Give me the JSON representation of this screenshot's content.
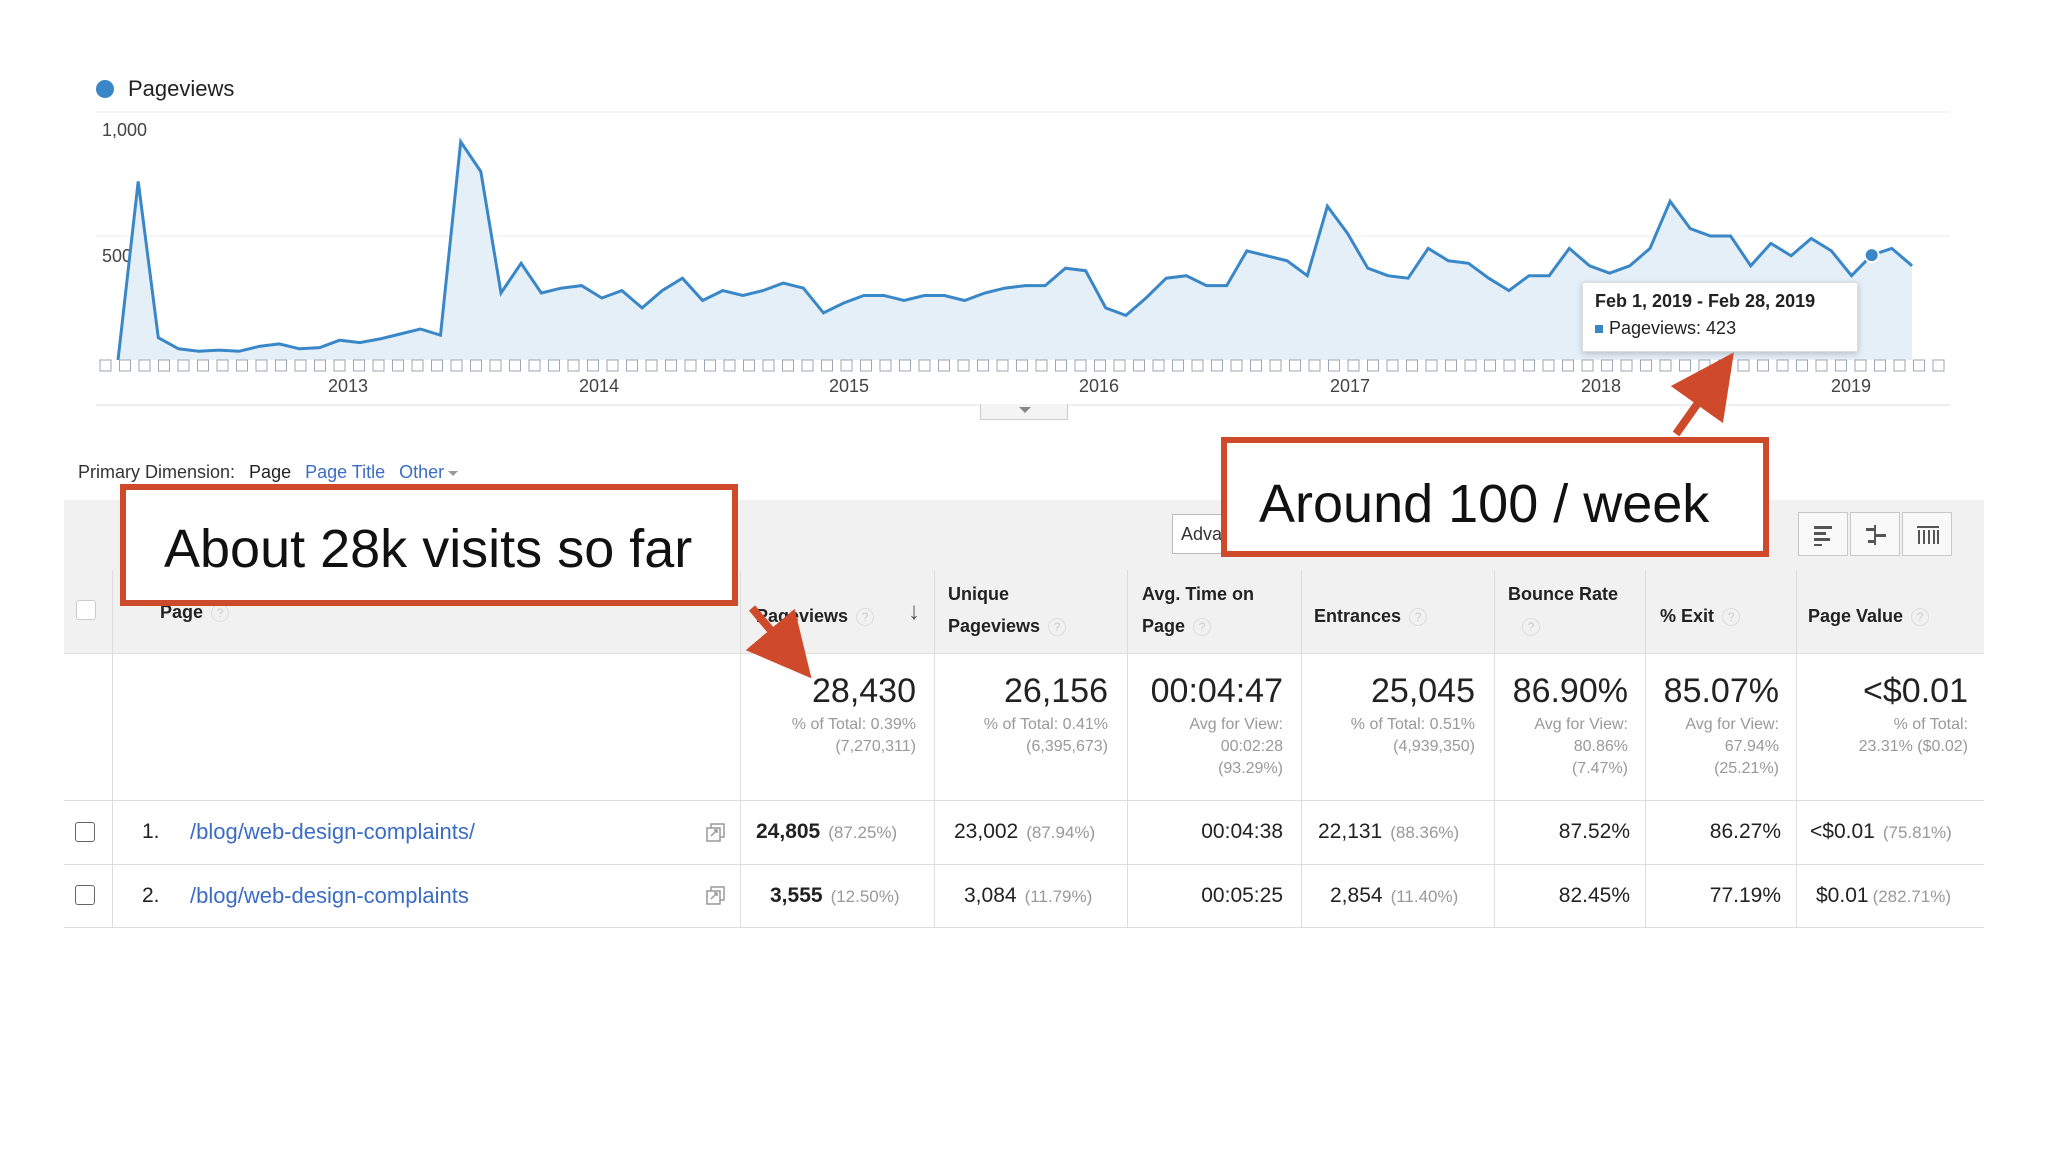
{
  "chart": {
    "legend_label": "Pageviews",
    "series_color": "#3a87c8",
    "y_ticks": [
      "1,000",
      "500"
    ],
    "x_ticks": [
      "2013",
      "2014",
      "2015",
      "2016",
      "2017",
      "2018",
      "2019"
    ],
    "tooltip": {
      "date_range": "Feb 1, 2019 - Feb 28, 2019",
      "label": "Pageviews: 423"
    }
  },
  "chart_data": {
    "type": "area",
    "ylim": [
      0,
      1000
    ],
    "x_ticks": [
      "2013",
      "2014",
      "2015",
      "2016",
      "2017",
      "2018",
      "2019"
    ],
    "series": [
      {
        "name": "Pageviews",
        "values": [
          0,
          720,
          90,
          45,
          35,
          40,
          35,
          55,
          65,
          45,
          50,
          80,
          70,
          85,
          105,
          125,
          100,
          880,
          760,
          270,
          390,
          270,
          290,
          300,
          250,
          280,
          210,
          280,
          330,
          240,
          280,
          260,
          280,
          310,
          290,
          190,
          230,
          260,
          260,
          240,
          260,
          260,
          240,
          270,
          290,
          300,
          300,
          370,
          360,
          210,
          180,
          250,
          330,
          340,
          300,
          300,
          440,
          420,
          400,
          340,
          620,
          510,
          370,
          340,
          330,
          450,
          400,
          390,
          330,
          280,
          340,
          340,
          450,
          380,
          350,
          380,
          450,
          640,
          530,
          500,
          500,
          380,
          470,
          420,
          490,
          440,
          340,
          423,
          450,
          380
        ]
      }
    ]
  },
  "primary_dimension": {
    "label": "Primary Dimension:",
    "current": "Page",
    "options": [
      "Page Title",
      "Other"
    ]
  },
  "toolbar": {
    "advanced_label": "Adva"
  },
  "table": {
    "headers": {
      "page": "Page",
      "pageviews": "Pageviews",
      "unique_pageviews_1": "Unique",
      "unique_pageviews_2": "Pageviews",
      "avg_time_1": "Avg. Time on",
      "avg_time_2": "Page",
      "entrances": "Entrances",
      "bounce_rate": "Bounce Rate",
      "exit": "% Exit",
      "page_value": "Page Value"
    },
    "totals": {
      "pageviews": "28,430",
      "pageviews_sub1": "% of Total: 0.39%",
      "pageviews_sub2": "(7,270,311)",
      "unique": "26,156",
      "unique_sub1": "% of Total: 0.41%",
      "unique_sub2": "(6,395,673)",
      "avg_time": "00:04:47",
      "avg_time_sub1": "Avg for View:",
      "avg_time_sub2": "00:02:28",
      "avg_time_sub3": "(93.29%)",
      "entrances": "25,045",
      "entrances_sub1": "% of Total: 0.51%",
      "entrances_sub2": "(4,939,350)",
      "bounce": "86.90%",
      "bounce_sub1": "Avg for View:",
      "bounce_sub2": "80.86%",
      "bounce_sub3": "(7.47%)",
      "exit": "85.07%",
      "exit_sub1": "Avg for View:",
      "exit_sub2": "67.94%",
      "exit_sub3": "(25.21%)",
      "value": "<$0.01",
      "value_sub1": "% of Total:",
      "value_sub2": "23.31% ($0.02)"
    },
    "rows": [
      {
        "num": "1.",
        "page": "/blog/web-design-complaints/",
        "pageviews": "24,805",
        "pageviews_pct": "(87.25%)",
        "unique": "23,002",
        "unique_pct": "(87.94%)",
        "avg_time": "00:04:38",
        "entrances": "22,131",
        "entrances_pct": "(88.36%)",
        "bounce": "87.52%",
        "exit": "86.27%",
        "value": "<$0.01",
        "value_pct": "(75.81%)"
      },
      {
        "num": "2.",
        "page": "/blog/web-design-complaints",
        "pageviews": "3,555",
        "pageviews_pct": "(12.50%)",
        "unique": "3,084",
        "unique_pct": "(11.79%)",
        "avg_time": "00:05:25",
        "entrances": "2,854",
        "entrances_pct": "(11.40%)",
        "bounce": "82.45%",
        "exit": "77.19%",
        "value": "$0.01",
        "value_pct": "(282.71%)"
      }
    ]
  },
  "annotations": {
    "left": "About 28k visits so far",
    "right": "Around 100 / week",
    "color": "#cf4a2b"
  }
}
